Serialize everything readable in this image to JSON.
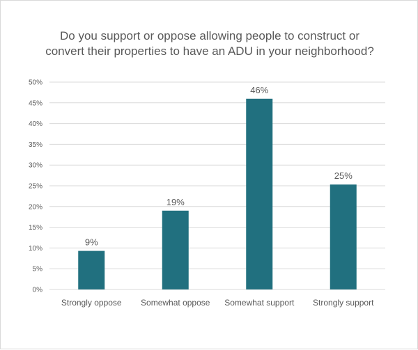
{
  "chart_data": {
    "type": "bar",
    "title": "Do you support or oppose allowing people to construct or convert their properties to have an ADU in your neighborhood?",
    "categories": [
      "Strongly oppose",
      "Somewhat oppose",
      "Somewhat support",
      "Strongly support"
    ],
    "values": [
      9.3,
      19.0,
      46.0,
      25.3
    ],
    "data_labels": [
      "9%",
      "19%",
      "46%",
      "25%"
    ],
    "y_ticks": [
      "0%",
      "5%",
      "10%",
      "15%",
      "20%",
      "25%",
      "30%",
      "35%",
      "40%",
      "45%",
      "50%"
    ],
    "ylim": [
      0,
      50
    ],
    "grid": true,
    "bar_color": "#21707f",
    "grid_color": "#d9d9d9"
  }
}
